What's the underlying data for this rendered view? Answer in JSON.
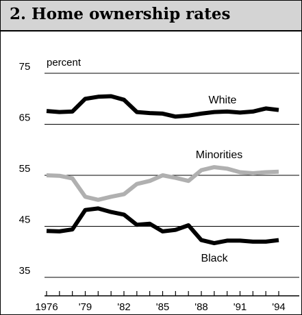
{
  "title": "2. Home ownership rates",
  "chart_data": {
    "type": "line",
    "ylabel": "percent",
    "ylim": [
      35,
      75
    ],
    "yticks": [
      75,
      65,
      55,
      45,
      35
    ],
    "xlim": [
      1976,
      1994
    ],
    "xtick_labels": [
      {
        "value": 1976,
        "label": "1976"
      },
      {
        "value": 1979,
        "label": "'79"
      },
      {
        "value": 1982,
        "label": "'82"
      },
      {
        "value": 1985,
        "label": "'85"
      },
      {
        "value": 1988,
        "label": "'88"
      },
      {
        "value": 1991,
        "label": "'91"
      },
      {
        "value": 1994,
        "label": "'94"
      }
    ],
    "x": [
      1976,
      1977,
      1978,
      1979,
      1980,
      1981,
      1982,
      1983,
      1984,
      1985,
      1986,
      1987,
      1988,
      1989,
      1990,
      1991,
      1992,
      1993,
      1994
    ],
    "grid": true,
    "series": [
      {
        "name": "White",
        "color": "#000000",
        "values": [
          67.6,
          67.4,
          67.5,
          70.0,
          70.4,
          70.5,
          69.8,
          67.4,
          67.2,
          67.1,
          66.5,
          66.7,
          67.1,
          67.4,
          67.5,
          67.3,
          67.5,
          68.1,
          67.8
        ]
      },
      {
        "name": "Minorities",
        "color": "#b0b0b0",
        "values": [
          55.0,
          54.9,
          54.4,
          50.8,
          50.2,
          50.8,
          51.3,
          53.3,
          53.9,
          55.0,
          54.5,
          53.9,
          56.0,
          56.6,
          56.3,
          55.6,
          55.4,
          55.6,
          55.7
        ]
      },
      {
        "name": "Black",
        "color": "#000000",
        "values": [
          44.1,
          44.0,
          44.4,
          48.2,
          48.5,
          47.8,
          47.3,
          45.3,
          45.5,
          44.0,
          44.3,
          45.2,
          42.3,
          41.7,
          42.2,
          42.2,
          42.0,
          42.0,
          42.3
        ]
      }
    ]
  }
}
